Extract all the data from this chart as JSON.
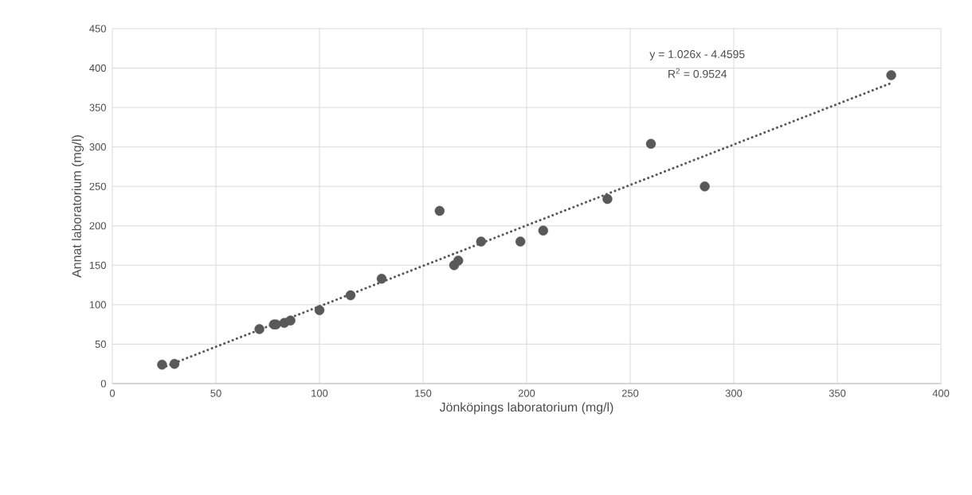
{
  "chart_data": {
    "type": "scatter",
    "xlabel": "Jönköpings laboratorium (mg/l)",
    "ylabel": "Annat laboratorium (mg/l)",
    "annotations": [
      "y = 1.026x - 4.4595",
      "R$^{2}$ = 0.9524"
    ],
    "series": [
      {
        "color": "#595959",
        "marker": "circle",
        "x": [
          24,
          30,
          71,
          78,
          79,
          83,
          86,
          100,
          115,
          130,
          158,
          165,
          167,
          178,
          197,
          208,
          239,
          260,
          286,
          376
        ],
        "values": [
          24,
          25,
          69,
          75,
          75,
          77,
          80,
          93,
          112,
          133,
          219,
          150,
          156,
          180,
          180,
          194,
          234,
          304,
          250,
          391
        ]
      },
      {
        "type": "line",
        "color": "#595959",
        "marker": "none",
        "line_style": "dotted",
        "x": [
          24,
          376
        ],
        "values": [
          20,
          381
        ]
      }
    ],
    "xlim": [
      0,
      400
    ],
    "xticks": [
      0,
      50,
      100,
      150,
      200,
      250,
      300,
      350,
      400
    ],
    "ylim": [
      0,
      450
    ],
    "yticks": [
      0,
      50,
      100,
      150,
      200,
      250,
      300,
      350,
      400,
      450
    ],
    "grid": true,
    "legend": false
  }
}
